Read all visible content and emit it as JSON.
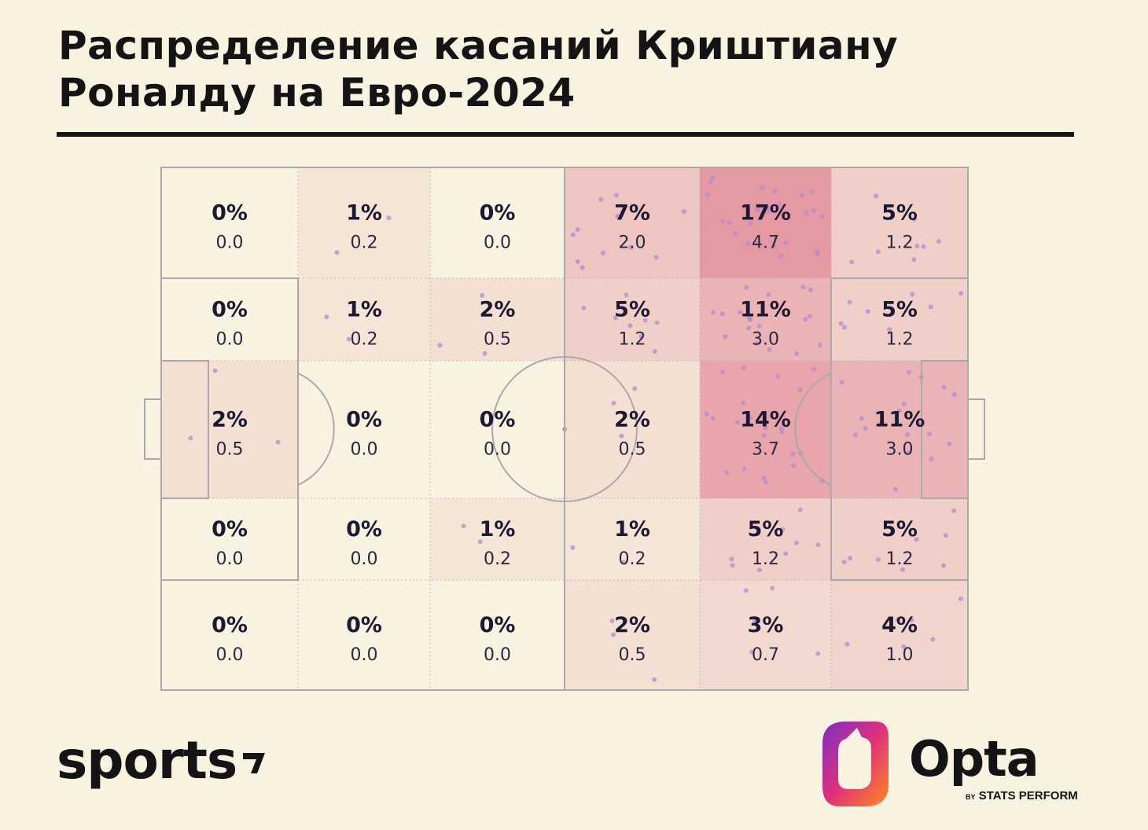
{
  "title": "Распределение касаний Криштиану Роналду на Евро-2024",
  "chart_data": {
    "type": "heatmap",
    "title": "Распределение касаний Криштиану Роналду на Евро-2024",
    "rows": 5,
    "cols": 6,
    "cells": [
      [
        {
          "pct": "0%",
          "val": "0.0"
        },
        {
          "pct": "1%",
          "val": "0.2"
        },
        {
          "pct": "0%",
          "val": "0.0"
        },
        {
          "pct": "7%",
          "val": "2.0"
        },
        {
          "pct": "17%",
          "val": "4.7"
        },
        {
          "pct": "5%",
          "val": "1.2"
        }
      ],
      [
        {
          "pct": "0%",
          "val": "0.0"
        },
        {
          "pct": "1%",
          "val": "0.2"
        },
        {
          "pct": "2%",
          "val": "0.5"
        },
        {
          "pct": "5%",
          "val": "1.2"
        },
        {
          "pct": "11%",
          "val": "3.0"
        },
        {
          "pct": "5%",
          "val": "1.2"
        }
      ],
      [
        {
          "pct": "2%",
          "val": "0.5"
        },
        {
          "pct": "0%",
          "val": "0.0"
        },
        {
          "pct": "0%",
          "val": "0.0"
        },
        {
          "pct": "2%",
          "val": "0.5"
        },
        {
          "pct": "14%",
          "val": "3.7"
        },
        {
          "pct": "11%",
          "val": "3.0"
        }
      ],
      [
        {
          "pct": "0%",
          "val": "0.0"
        },
        {
          "pct": "0%",
          "val": "0.0"
        },
        {
          "pct": "1%",
          "val": "0.2"
        },
        {
          "pct": "1%",
          "val": "0.2"
        },
        {
          "pct": "5%",
          "val": "1.2"
        },
        {
          "pct": "5%",
          "val": "1.2"
        }
      ],
      [
        {
          "pct": "0%",
          "val": "0.0"
        },
        {
          "pct": "0%",
          "val": "0.0"
        },
        {
          "pct": "0%",
          "val": "0.0"
        },
        {
          "pct": "2%",
          "val": "0.5"
        },
        {
          "pct": "3%",
          "val": "0.7"
        },
        {
          "pct": "4%",
          "val": "1.0"
        }
      ]
    ],
    "colors": {
      "background": "#f8f3e1",
      "line": "#a9a9a9",
      "dot": "#b48ad0",
      "heat_low": "#f8f3e1",
      "heat_high": "#e59aa3"
    }
  },
  "branding": {
    "left_logo": "sports",
    "right_logo": "Opta",
    "right_sub_by": "BY",
    "right_sub": "STATS PERFORM"
  }
}
